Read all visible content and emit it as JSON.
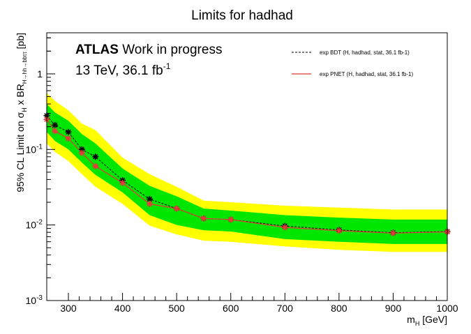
{
  "chart_data": {
    "type": "line",
    "title": "Limits for hadhad",
    "xlabel": "m",
    "xlabel_sub": "H",
    "xlabel_unit": " [GeV]",
    "ylabel": {
      "prefix": "95% CL Limit on σ",
      "sub1": "H",
      "mid": " x BR",
      "sub2": "H→hh→bbττ",
      "suffix": " [pb]"
    },
    "xlim": [
      260,
      1000
    ],
    "ylim": [
      0.001,
      3.5
    ],
    "yscale": "log",
    "x_ticks": [
      300,
      400,
      500,
      600,
      700,
      800,
      900,
      1000
    ],
    "y_ticks": [
      {
        "value": 0.001,
        "base": "10",
        "exp": "-3"
      },
      {
        "value": 0.01,
        "base": "10",
        "exp": "-2"
      },
      {
        "value": 0.1,
        "base": "10",
        "exp": "-1"
      },
      {
        "value": 1,
        "base": "1",
        "exp": ""
      }
    ],
    "annotation": {
      "atlas": "ATLAS",
      "status": "Work in progress",
      "energy": "13 TeV, 36.1 fb",
      "energy_exp": "-1"
    },
    "x": [
      260,
      275,
      300,
      325,
      350,
      400,
      450,
      500,
      550,
      600,
      700,
      800,
      900,
      1000
    ],
    "bands": {
      "yellow_upper": [
        0.56,
        0.44,
        0.33,
        0.22,
        0.18,
        0.078,
        0.047,
        0.032,
        0.021,
        0.02,
        0.018,
        0.017,
        0.016,
        0.016
      ],
      "green_upper": [
        0.4,
        0.31,
        0.24,
        0.16,
        0.12,
        0.056,
        0.033,
        0.024,
        0.0165,
        0.0155,
        0.0135,
        0.0125,
        0.0118,
        0.0118
      ],
      "green_lower": [
        0.17,
        0.13,
        0.1,
        0.067,
        0.046,
        0.027,
        0.0135,
        0.01,
        0.0085,
        0.0082,
        0.0065,
        0.006,
        0.0056,
        0.0056
      ],
      "yellow_lower": [
        0.12,
        0.093,
        0.07,
        0.047,
        0.032,
        0.019,
        0.0098,
        0.0075,
        0.0062,
        0.006,
        0.0052,
        0.0047,
        0.0044,
        0.0044
      ]
    },
    "series": [
      {
        "name": "exp BDT (H, hadhad, stat, 36.1 fb-1)",
        "color": "#000000",
        "style": "dashed",
        "marker": "black-star",
        "values": [
          0.28,
          0.21,
          0.17,
          0.1,
          0.08,
          0.039,
          0.022,
          0.0165,
          0.0122,
          0.0118,
          0.0097,
          0.0086,
          0.0079,
          0.0082
        ]
      },
      {
        "name": "exp PNET (H, hadhad, stat, 36.1 fb-1)",
        "color": "#e8383d",
        "style": "solid",
        "marker": "red-star",
        "values": [
          0.25,
          0.175,
          0.14,
          0.09,
          0.06,
          0.036,
          0.019,
          0.0165,
          0.0122,
          0.0118,
          0.0093,
          0.0084,
          0.0078,
          0.0081
        ]
      }
    ],
    "colors": {
      "yellow_band": "#ffff00",
      "green_band": "#00e600"
    },
    "legend_position": "top-right"
  }
}
